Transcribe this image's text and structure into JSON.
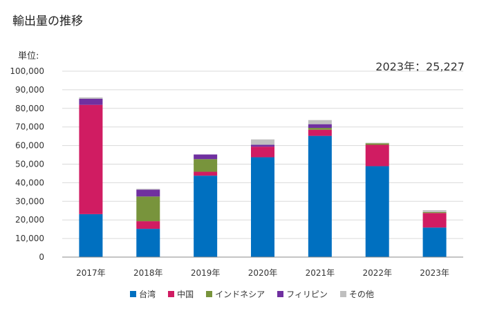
{
  "title": "輸出量の推移",
  "unit_label": "単位:",
  "annotation": "2023年：25,227",
  "chart_data": {
    "type": "bar",
    "stacked": true,
    "categories": [
      "2017年",
      "2018年",
      "2019年",
      "2020年",
      "2021年",
      "2022年",
      "2023年"
    ],
    "ylim": [
      0,
      100000
    ],
    "yticks": [
      "0",
      "10,000",
      "20,000",
      "30,000",
      "40,000",
      "50,000",
      "60,000",
      "70,000",
      "80,000",
      "90,000",
      "100,000"
    ],
    "grid": true,
    "legend_placement": "bottom",
    "series": [
      {
        "name": "台湾",
        "color": "#0070c0",
        "values": [
          23100,
          15200,
          43800,
          53700,
          65200,
          48900,
          15900
        ]
      },
      {
        "name": "中国",
        "color": "#d01c62",
        "values": [
          58800,
          4100,
          2100,
          5700,
          3300,
          11500,
          7800
        ]
      },
      {
        "name": "インドネシア",
        "color": "#78943c",
        "values": [
          0,
          13300,
          6800,
          0,
          1000,
          800,
          500
        ]
      },
      {
        "name": "フィリピン",
        "color": "#7030a0",
        "values": [
          3300,
          3700,
          2500,
          1000,
          2000,
          0,
          0
        ]
      },
      {
        "name": "その他",
        "color": "#bfbfbf",
        "values": [
          700,
          400,
          0,
          2900,
          2200,
          300,
          1027
        ]
      }
    ]
  }
}
